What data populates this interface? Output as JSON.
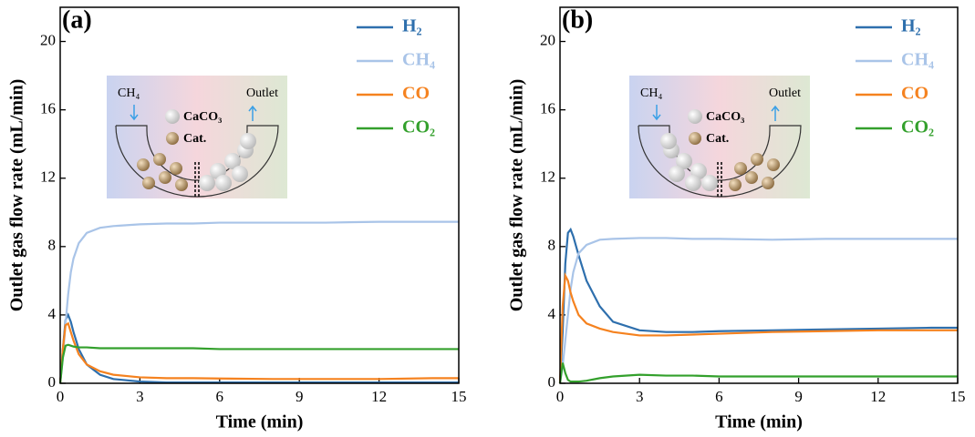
{
  "chart_data": [
    {
      "type": "line",
      "panel_label": "(a)",
      "xlabel": "Time (min)",
      "ylabel": "Outlet gas flow rate (mL/min)",
      "x": [
        0,
        0.1,
        0.2,
        0.3,
        0.4,
        0.5,
        0.7,
        1,
        1.5,
        2,
        3,
        4,
        5,
        6,
        8,
        10,
        12,
        14,
        15
      ],
      "series": [
        {
          "name": "H₂",
          "color": "#2e6fad",
          "values": [
            0,
            2,
            3.7,
            4.0,
            3.6,
            3.0,
            2.0,
            1.1,
            0.5,
            0.25,
            0.1,
            0.05,
            0.05,
            0.05,
            0.05,
            0.05,
            0.05,
            0.05,
            0.05
          ]
        },
        {
          "name": "CH₄",
          "color": "#a9c4e8",
          "values": [
            0,
            1.5,
            3.5,
            5.2,
            6.5,
            7.3,
            8.2,
            8.8,
            9.1,
            9.2,
            9.3,
            9.35,
            9.35,
            9.4,
            9.4,
            9.4,
            9.45,
            9.45,
            9.45
          ]
        },
        {
          "name": "CO",
          "color": "#f5821f",
          "values": [
            0,
            2,
            3.4,
            3.5,
            3.0,
            2.5,
            1.7,
            1.1,
            0.7,
            0.5,
            0.35,
            0.3,
            0.3,
            0.28,
            0.25,
            0.25,
            0.25,
            0.3,
            0.3
          ]
        },
        {
          "name": "CO₂",
          "color": "#33a02c",
          "values": [
            0,
            1.5,
            2.2,
            2.25,
            2.2,
            2.15,
            2.1,
            2.1,
            2.05,
            2.05,
            2.05,
            2.05,
            2.05,
            2.0,
            2.0,
            2.0,
            2.0,
            2.0,
            2.0
          ]
        }
      ],
      "xlim": [
        0,
        15
      ],
      "xticks": [
        0,
        3,
        6,
        9,
        12,
        15
      ],
      "ylim": [
        0,
        22
      ],
      "yticks": [
        0,
        4,
        8,
        12,
        16,
        20
      ],
      "legend": "upper right",
      "inset_labels": [
        "CH₄",
        "Outlet",
        "CaCO₃",
        "Cat."
      ]
    },
    {
      "type": "line",
      "panel_label": "(b)",
      "xlabel": "Time (min)",
      "ylabel": "Outlet gas flow rate (mL/min)",
      "x": [
        0,
        0.1,
        0.2,
        0.3,
        0.4,
        0.5,
        0.7,
        1,
        1.5,
        2,
        3,
        4,
        5,
        6,
        8,
        10,
        12,
        14,
        15
      ],
      "series": [
        {
          "name": "H₂",
          "color": "#2e6fad",
          "values": [
            0,
            3,
            7,
            8.8,
            9.0,
            8.6,
            7.5,
            6,
            4.5,
            3.6,
            3.1,
            3.0,
            3.0,
            3.05,
            3.1,
            3.15,
            3.2,
            3.25,
            3.25
          ]
        },
        {
          "name": "CH₄",
          "color": "#a9c4e8",
          "values": [
            0,
            1,
            2.5,
            4,
            5.5,
            6.5,
            7.6,
            8.1,
            8.4,
            8.45,
            8.5,
            8.5,
            8.45,
            8.45,
            8.4,
            8.45,
            8.45,
            8.45,
            8.45
          ]
        },
        {
          "name": "CO",
          "color": "#f5821f",
          "values": [
            0,
            4.5,
            6.3,
            6.0,
            5.3,
            4.8,
            4.0,
            3.5,
            3.2,
            3.0,
            2.8,
            2.8,
            2.85,
            2.9,
            3.0,
            3.05,
            3.1,
            3.1,
            3.1
          ]
        },
        {
          "name": "CO₂",
          "color": "#33a02c",
          "values": [
            0,
            1.2,
            0.6,
            0.2,
            0.1,
            0.1,
            0.1,
            0.15,
            0.3,
            0.4,
            0.5,
            0.45,
            0.45,
            0.4,
            0.4,
            0.4,
            0.4,
            0.4,
            0.4
          ]
        }
      ],
      "xlim": [
        0,
        15
      ],
      "xticks": [
        0,
        3,
        6,
        9,
        12,
        15
      ],
      "ylim": [
        0,
        22
      ],
      "yticks": [
        0,
        4,
        8,
        12,
        16,
        20
      ],
      "legend": "upper right",
      "inset_labels": [
        "CH₄",
        "Outlet",
        "CaCO₃",
        "Cat."
      ]
    }
  ]
}
